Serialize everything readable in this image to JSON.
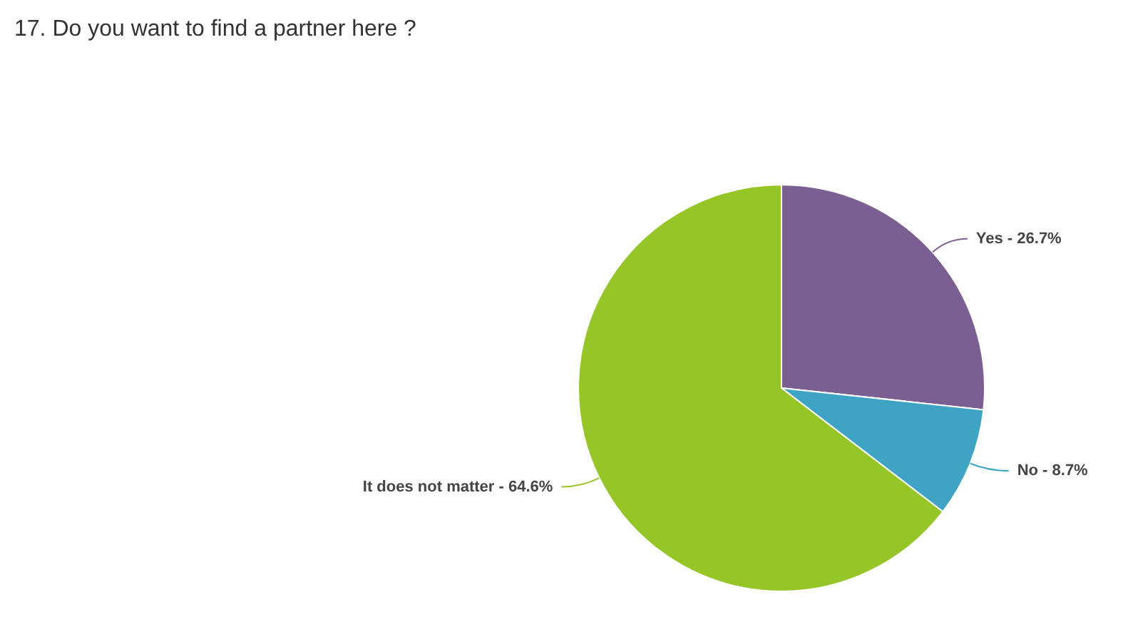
{
  "chart_data": {
    "type": "pie",
    "title": "17. Do you want to find a partner here ?",
    "categories": [
      "Yes",
      "No",
      "It does not matter"
    ],
    "values": [
      26.7,
      8.7,
      64.6
    ],
    "value_labels": [
      "26.7%",
      "8.7%",
      "64.6%"
    ],
    "colors": [
      "#7b5e92",
      "#3fa4c4",
      "#95c526"
    ],
    "legend": false
  }
}
